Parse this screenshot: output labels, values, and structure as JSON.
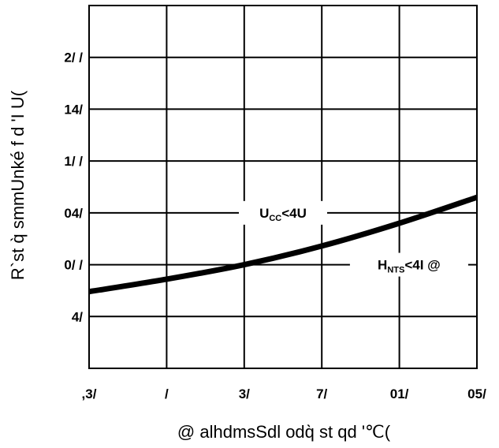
{
  "chart_data": {
    "type": "line",
    "xlabel": "@ alhdmsSdl odq̀ st qd '℃(",
    "ylabel": "R`st q̀ smmUnké f d 'I U(",
    "x_tick_labels": [
      ",3/",
      "/",
      "3/",
      "7/",
      "01/",
      "05/"
    ],
    "y_tick_labels": [
      "4/",
      "0/ /",
      "04/",
      "1/ /",
      "14/",
      "2/ /"
    ],
    "x_ticks": [
      -40,
      0,
      40,
      80,
      120,
      160
    ],
    "y_ticks": [
      50,
      100,
      150,
      200,
      250,
      300
    ],
    "xlim": [
      -40,
      160
    ],
    "ylim": [
      0,
      350
    ],
    "grid": true,
    "series": [
      {
        "x": [
          -40,
          0,
          40,
          80,
          120,
          160
        ],
        "y": [
          74,
          86,
          100,
          118,
          140,
          165
        ]
      }
    ],
    "annotations": [
      {
        "main": "U",
        "sub": "CC",
        "rest": "<4U",
        "x": 60,
        "y": 150
      },
      {
        "main": "H",
        "sub": "NTS",
        "rest": "<4I  @",
        "x": 125,
        "y": 100
      }
    ]
  }
}
